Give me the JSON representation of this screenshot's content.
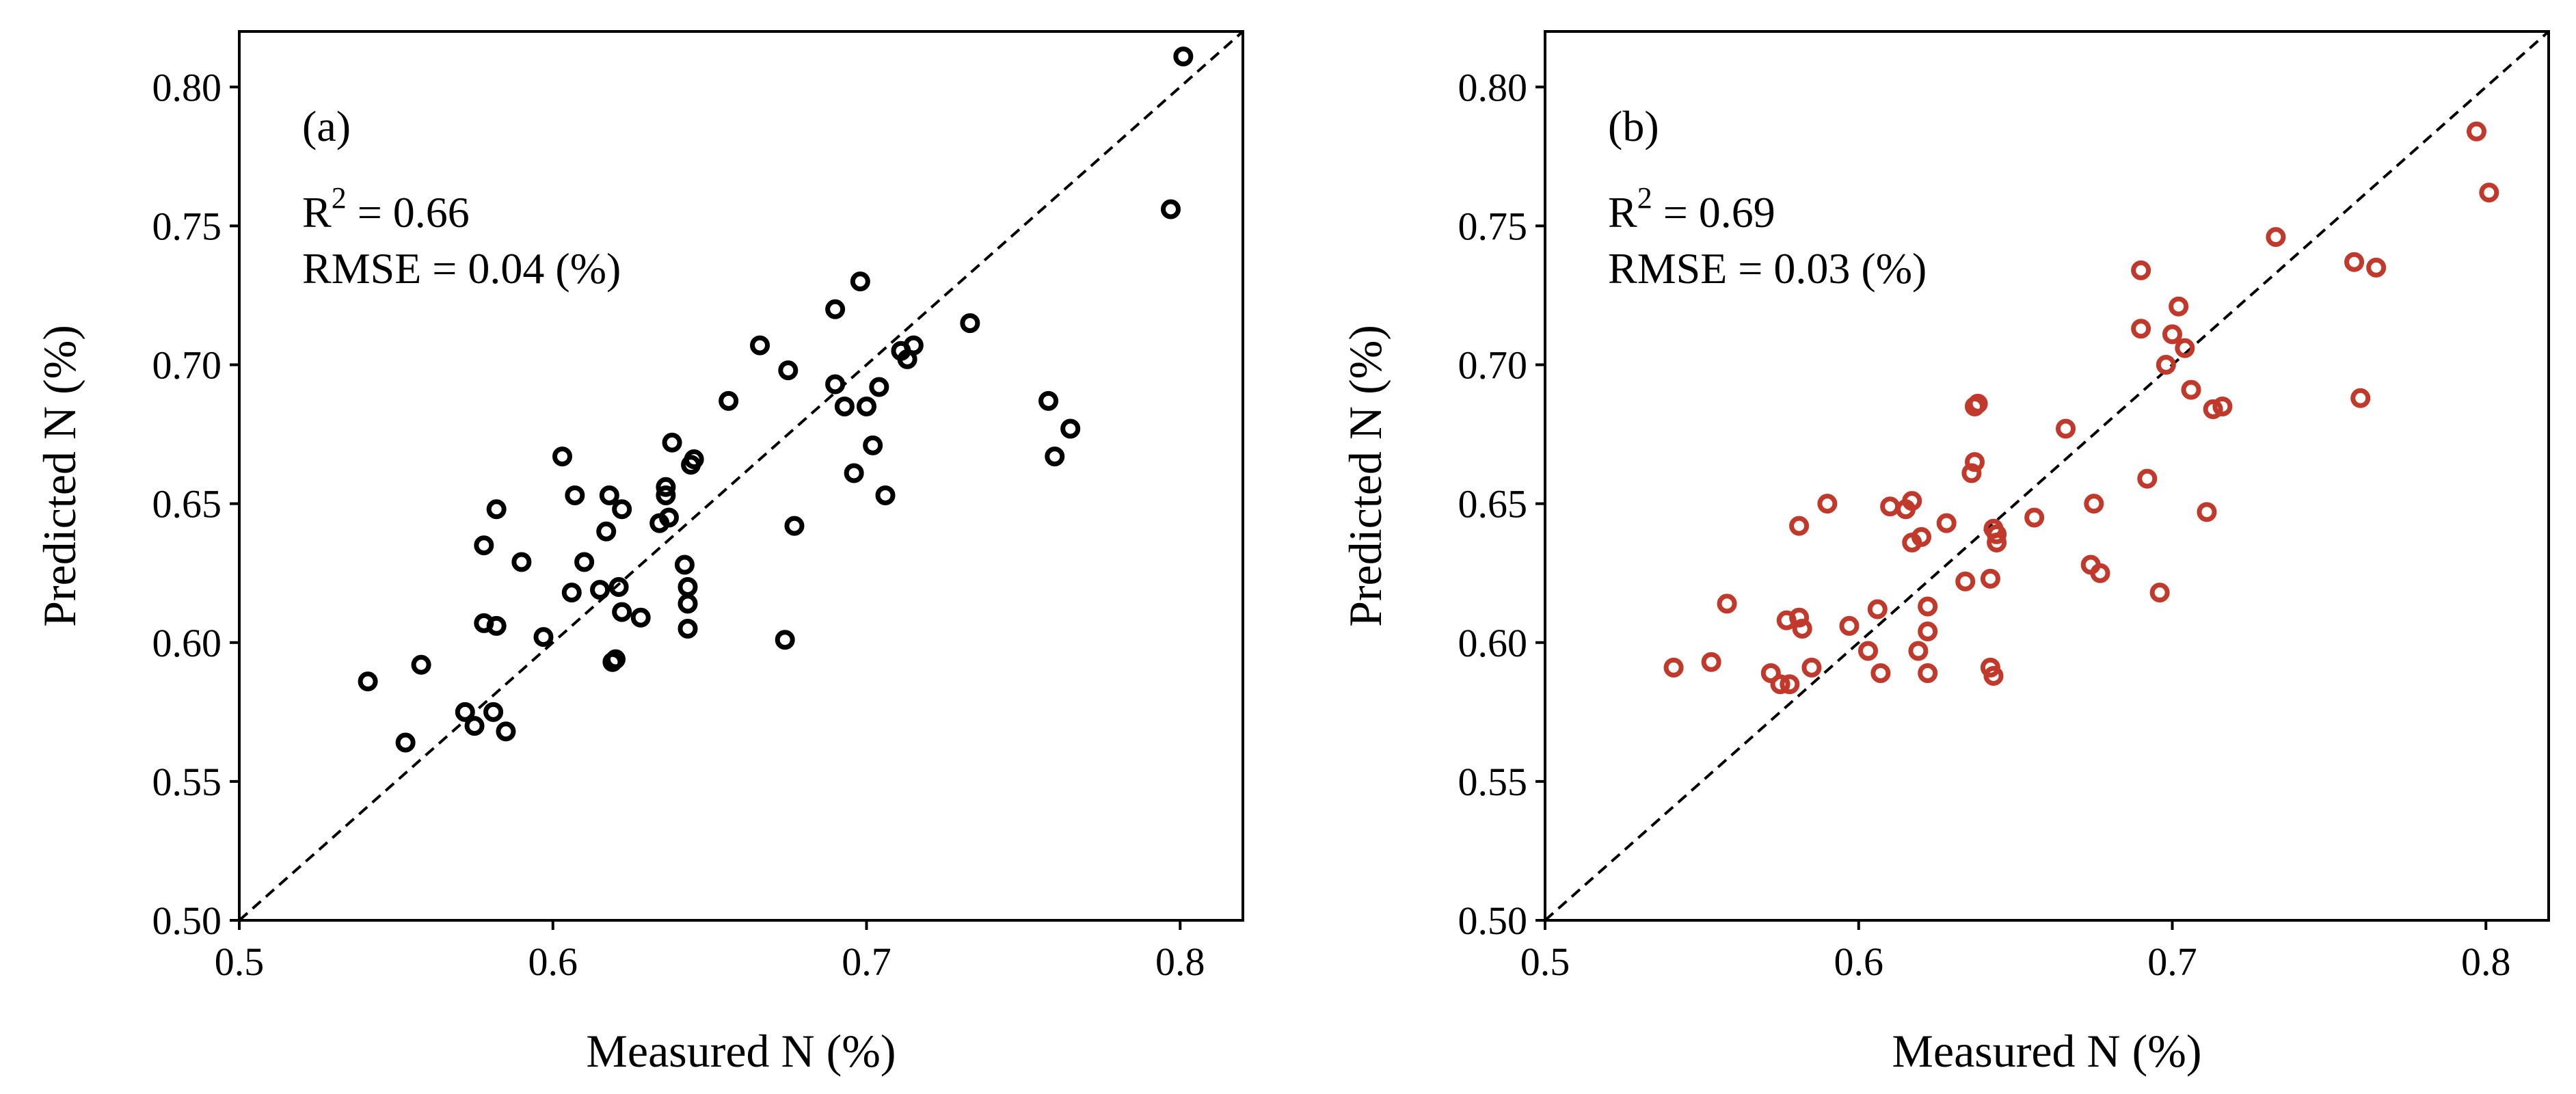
{
  "chart_data": [
    {
      "type": "scatter",
      "panel_label": "(a)",
      "r2_prefix": "R",
      "r2_exp": "2",
      "r2_value": " = 0.66",
      "rmse_text": "RMSE = 0.04 (%)",
      "xlabel": "Measured N (%)",
      "ylabel": "Predicted N (%)",
      "xlim": [
        0.5,
        0.82
      ],
      "ylim": [
        0.5,
        0.82
      ],
      "xticks": [
        "0.5",
        "0.6",
        "0.7",
        "0.8"
      ],
      "yticks": [
        "0.50",
        "0.55",
        "0.60",
        "0.65",
        "0.70",
        "0.75",
        "0.80"
      ],
      "grid": false,
      "reference_line": "1:1 dashed",
      "marker_color": "#000000",
      "points": [
        [
          0.541,
          0.586
        ],
        [
          0.553,
          0.564
        ],
        [
          0.558,
          0.592
        ],
        [
          0.572,
          0.575
        ],
        [
          0.575,
          0.57
        ],
        [
          0.578,
          0.635
        ],
        [
          0.578,
          0.607
        ],
        [
          0.581,
          0.575
        ],
        [
          0.582,
          0.606
        ],
        [
          0.582,
          0.648
        ],
        [
          0.585,
          0.568
        ],
        [
          0.59,
          0.629
        ],
        [
          0.597,
          0.602
        ],
        [
          0.603,
          0.667
        ],
        [
          0.606,
          0.618
        ],
        [
          0.607,
          0.653
        ],
        [
          0.61,
          0.629
        ],
        [
          0.615,
          0.619
        ],
        [
          0.617,
          0.64
        ],
        [
          0.618,
          0.653
        ],
        [
          0.619,
          0.593
        ],
        [
          0.62,
          0.594
        ],
        [
          0.621,
          0.62
        ],
        [
          0.622,
          0.648
        ],
        [
          0.622,
          0.611
        ],
        [
          0.628,
          0.609
        ],
        [
          0.634,
          0.643
        ],
        [
          0.636,
          0.656
        ],
        [
          0.636,
          0.653
        ],
        [
          0.637,
          0.645
        ],
        [
          0.638,
          0.672
        ],
        [
          0.642,
          0.628
        ],
        [
          0.643,
          0.62
        ],
        [
          0.643,
          0.614
        ],
        [
          0.643,
          0.605
        ],
        [
          0.644,
          0.664
        ],
        [
          0.645,
          0.666
        ],
        [
          0.656,
          0.687
        ],
        [
          0.666,
          0.707
        ],
        [
          0.674,
          0.601
        ],
        [
          0.675,
          0.698
        ],
        [
          0.677,
          0.642
        ],
        [
          0.69,
          0.72
        ],
        [
          0.69,
          0.693
        ],
        [
          0.693,
          0.685
        ],
        [
          0.696,
          0.661
        ],
        [
          0.698,
          0.73
        ],
        [
          0.7,
          0.685
        ],
        [
          0.702,
          0.671
        ],
        [
          0.704,
          0.692
        ],
        [
          0.706,
          0.653
        ],
        [
          0.711,
          0.705
        ],
        [
          0.713,
          0.702
        ],
        [
          0.715,
          0.707
        ],
        [
          0.733,
          0.715
        ],
        [
          0.758,
          0.687
        ],
        [
          0.76,
          0.667
        ],
        [
          0.765,
          0.677
        ],
        [
          0.797,
          0.756
        ],
        [
          0.801,
          0.811
        ]
      ]
    },
    {
      "type": "scatter",
      "panel_label": "(b)",
      "r2_prefix": "R",
      "r2_exp": "2",
      "r2_value": " = 0.69",
      "rmse_text": "RMSE = 0.03 (%)",
      "xlabel": "Measured N (%)",
      "ylabel": "Predicted N (%)",
      "xlim": [
        0.5,
        0.82
      ],
      "ylim": [
        0.5,
        0.82
      ],
      "xticks": [
        "0.5",
        "0.6",
        "0.7",
        "0.8"
      ],
      "yticks": [
        "0.50",
        "0.55",
        "0.60",
        "0.65",
        "0.70",
        "0.75",
        "0.80"
      ],
      "grid": false,
      "reference_line": "1:1 dashed",
      "marker_color": "#c0392b",
      "points": [
        [
          0.541,
          0.591
        ],
        [
          0.553,
          0.593
        ],
        [
          0.558,
          0.614
        ],
        [
          0.572,
          0.589
        ],
        [
          0.575,
          0.585
        ],
        [
          0.577,
          0.608
        ],
        [
          0.578,
          0.585
        ],
        [
          0.581,
          0.642
        ],
        [
          0.581,
          0.609
        ],
        [
          0.582,
          0.605
        ],
        [
          0.585,
          0.591
        ],
        [
          0.59,
          0.65
        ],
        [
          0.597,
          0.606
        ],
        [
          0.603,
          0.597
        ],
        [
          0.606,
          0.612
        ],
        [
          0.607,
          0.589
        ],
        [
          0.61,
          0.649
        ],
        [
          0.615,
          0.648
        ],
        [
          0.617,
          0.651
        ],
        [
          0.617,
          0.636
        ],
        [
          0.619,
          0.597
        ],
        [
          0.62,
          0.638
        ],
        [
          0.622,
          0.613
        ],
        [
          0.622,
          0.604
        ],
        [
          0.622,
          0.589
        ],
        [
          0.628,
          0.643
        ],
        [
          0.634,
          0.622
        ],
        [
          0.636,
          0.661
        ],
        [
          0.637,
          0.665
        ],
        [
          0.637,
          0.685
        ],
        [
          0.638,
          0.686
        ],
        [
          0.642,
          0.591
        ],
        [
          0.642,
          0.623
        ],
        [
          0.643,
          0.641
        ],
        [
          0.643,
          0.588
        ],
        [
          0.644,
          0.639
        ],
        [
          0.644,
          0.636
        ],
        [
          0.656,
          0.645
        ],
        [
          0.666,
          0.677
        ],
        [
          0.674,
          0.628
        ],
        [
          0.675,
          0.65
        ],
        [
          0.677,
          0.625
        ],
        [
          0.69,
          0.734
        ],
        [
          0.69,
          0.713
        ],
        [
          0.692,
          0.659
        ],
        [
          0.696,
          0.618
        ],
        [
          0.698,
          0.7
        ],
        [
          0.7,
          0.711
        ],
        [
          0.702,
          0.721
        ],
        [
          0.704,
          0.706
        ],
        [
          0.706,
          0.691
        ],
        [
          0.711,
          0.647
        ],
        [
          0.713,
          0.684
        ],
        [
          0.716,
          0.685
        ],
        [
          0.733,
          0.746
        ],
        [
          0.758,
          0.737
        ],
        [
          0.76,
          0.688
        ],
        [
          0.765,
          0.735
        ],
        [
          0.797,
          0.784
        ],
        [
          0.801,
          0.762
        ]
      ]
    }
  ]
}
